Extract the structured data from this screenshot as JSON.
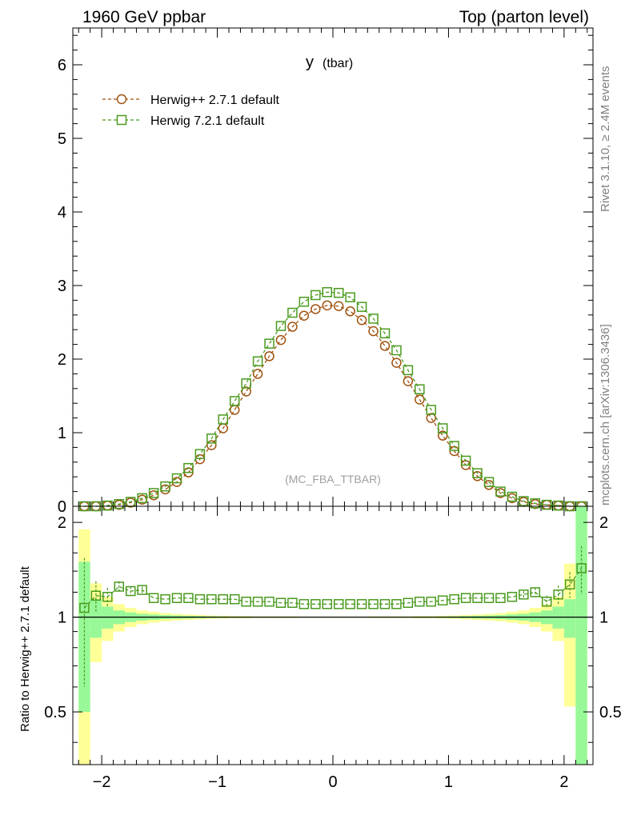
{
  "header": {
    "left": "1960 GeV ppbar",
    "right": "Top (parton level)"
  },
  "side": {
    "rivet": "Rivet 3.1.10, ≥ 2.4M events",
    "mcplots": "mcplots.cern.ch [arXiv:1306.3436]"
  },
  "colors": {
    "herwigpp": "#a0520f",
    "herwig7": "#4a9a1e",
    "band_green": "#98f898",
    "band_yellow": "#ffff98"
  },
  "chart_data": [
    {
      "type": "line",
      "title_main": "y",
      "title_sub": "(tbar)",
      "watermark": "(MC_FBA_TTBAR)",
      "legend_position": "top-left",
      "xlim": [
        -2.25,
        2.25
      ],
      "ylim": [
        0,
        6.5
      ],
      "yticks": [
        0,
        1,
        2,
        3,
        4,
        5,
        6
      ],
      "ytick_labels": [
        "0",
        "1",
        "2",
        "3",
        "4",
        "5",
        "6"
      ],
      "x": [
        -2.15,
        -2.05,
        -1.95,
        -1.85,
        -1.75,
        -1.65,
        -1.55,
        -1.45,
        -1.35,
        -1.25,
        -1.15,
        -1.05,
        -0.95,
        -0.85,
        -0.75,
        -0.65,
        -0.55,
        -0.45,
        -0.35,
        -0.25,
        -0.15,
        -0.05,
        0.05,
        0.15,
        0.25,
        0.35,
        0.45,
        0.55,
        0.65,
        0.75,
        0.85,
        0.95,
        1.05,
        1.15,
        1.25,
        1.35,
        1.45,
        1.55,
        1.65,
        1.75,
        1.85,
        1.95,
        2.05,
        2.15
      ],
      "series": [
        {
          "name": "Herwig++ 2.7.1 default",
          "marker": "circle",
          "values": [
            0.0,
            0.0,
            0.01,
            0.02,
            0.05,
            0.09,
            0.15,
            0.23,
            0.33,
            0.46,
            0.64,
            0.83,
            1.06,
            1.31,
            1.56,
            1.8,
            2.04,
            2.26,
            2.44,
            2.59,
            2.68,
            2.73,
            2.72,
            2.65,
            2.53,
            2.38,
            2.18,
            1.95,
            1.7,
            1.45,
            1.2,
            0.96,
            0.75,
            0.56,
            0.41,
            0.29,
            0.18,
            0.11,
            0.06,
            0.03,
            0.02,
            0.01,
            0.0,
            0.0
          ]
        },
        {
          "name": "Herwig 7.2.1 default",
          "marker": "square",
          "values": [
            0.0,
            0.0,
            0.01,
            0.03,
            0.06,
            0.11,
            0.18,
            0.27,
            0.38,
            0.52,
            0.71,
            0.92,
            1.18,
            1.43,
            1.67,
            1.97,
            2.21,
            2.45,
            2.63,
            2.78,
            2.87,
            2.91,
            2.9,
            2.84,
            2.71,
            2.55,
            2.35,
            2.12,
            1.85,
            1.59,
            1.31,
            1.06,
            0.82,
            0.62,
            0.45,
            0.33,
            0.2,
            0.13,
            0.07,
            0.04,
            0.02,
            0.01,
            0.0,
            0.0
          ]
        }
      ]
    },
    {
      "type": "line",
      "ylabel": "Ratio to Herwig++ 2.7.1 default",
      "xlim": [
        -2.25,
        2.25
      ],
      "ylim": [
        0.34,
        2.25
      ],
      "xticks": [
        -2,
        -1,
        0,
        1,
        2
      ],
      "xtick_labels": [
        "−2",
        "−1",
        "0",
        "1",
        "2"
      ],
      "yticks": [
        0.5,
        1,
        2
      ],
      "ytick_labels": [
        "0.5",
        "1",
        "2"
      ],
      "x": [
        -2.15,
        -2.05,
        -1.95,
        -1.85,
        -1.75,
        -1.65,
        -1.55,
        -1.45,
        -1.35,
        -1.25,
        -1.15,
        -1.05,
        -0.95,
        -0.85,
        -0.75,
        -0.65,
        -0.55,
        -0.45,
        -0.35,
        -0.25,
        -0.15,
        -0.05,
        0.05,
        0.15,
        0.25,
        0.35,
        0.45,
        0.55,
        0.65,
        0.75,
        0.85,
        0.95,
        1.05,
        1.15,
        1.25,
        1.35,
        1.45,
        1.55,
        1.65,
        1.75,
        1.85,
        1.95,
        2.05,
        2.15
      ],
      "series": [
        {
          "name": "Herwig 7.2.1 default",
          "values": [
            1.07,
            1.17,
            1.16,
            1.25,
            1.21,
            1.22,
            1.15,
            1.14,
            1.15,
            1.15,
            1.14,
            1.14,
            1.14,
            1.14,
            1.12,
            1.12,
            1.12,
            1.11,
            1.11,
            1.1,
            1.1,
            1.1,
            1.1,
            1.1,
            1.1,
            1.1,
            1.1,
            1.1,
            1.11,
            1.12,
            1.12,
            1.13,
            1.14,
            1.15,
            1.15,
            1.15,
            1.15,
            1.16,
            1.18,
            1.2,
            1.12,
            1.18,
            1.27,
            1.43
          ],
          "errors": [
            0.47,
            0.13,
            0.08,
            0.05,
            0.04,
            0.03,
            0.02,
            0.02,
            0.02,
            0.01,
            0.01,
            0.01,
            0.01,
            0.01,
            0.01,
            0.01,
            0.01,
            0.01,
            0.01,
            0.01,
            0.01,
            0.01,
            0.01,
            0.01,
            0.01,
            0.01,
            0.01,
            0.01,
            0.01,
            0.01,
            0.01,
            0.01,
            0.01,
            0.01,
            0.01,
            0.01,
            0.02,
            0.02,
            0.03,
            0.04,
            0.05,
            0.08,
            0.12,
            0.25
          ]
        }
      ],
      "band_half_width_inner": [
        0.5,
        0.14,
        0.08,
        0.05,
        0.035,
        0.025,
        0.02,
        0.015,
        0.012,
        0.01,
        0.008,
        0.006,
        0.005,
        0.004,
        0.004,
        0.003,
        0.003,
        0.003,
        0.003,
        0.002,
        0.002,
        0.002,
        0.002,
        0.002,
        0.002,
        0.003,
        0.003,
        0.003,
        0.003,
        0.004,
        0.004,
        0.005,
        0.006,
        0.008,
        0.01,
        0.012,
        0.015,
        0.02,
        0.025,
        0.035,
        0.05,
        0.08,
        0.14,
        1.3
      ],
      "band_half_width_outer": [
        0.9,
        0.28,
        0.16,
        0.1,
        0.07,
        0.05,
        0.04,
        0.03,
        0.024,
        0.02,
        0.016,
        0.012,
        0.01,
        0.008,
        0.008,
        0.006,
        0.006,
        0.006,
        0.006,
        0.004,
        0.004,
        0.004,
        0.004,
        0.004,
        0.004,
        0.006,
        0.006,
        0.006,
        0.006,
        0.008,
        0.008,
        0.01,
        0.012,
        0.016,
        0.02,
        0.024,
        0.03,
        0.04,
        0.05,
        0.07,
        0.1,
        0.16,
        0.48,
        1.6
      ]
    }
  ]
}
